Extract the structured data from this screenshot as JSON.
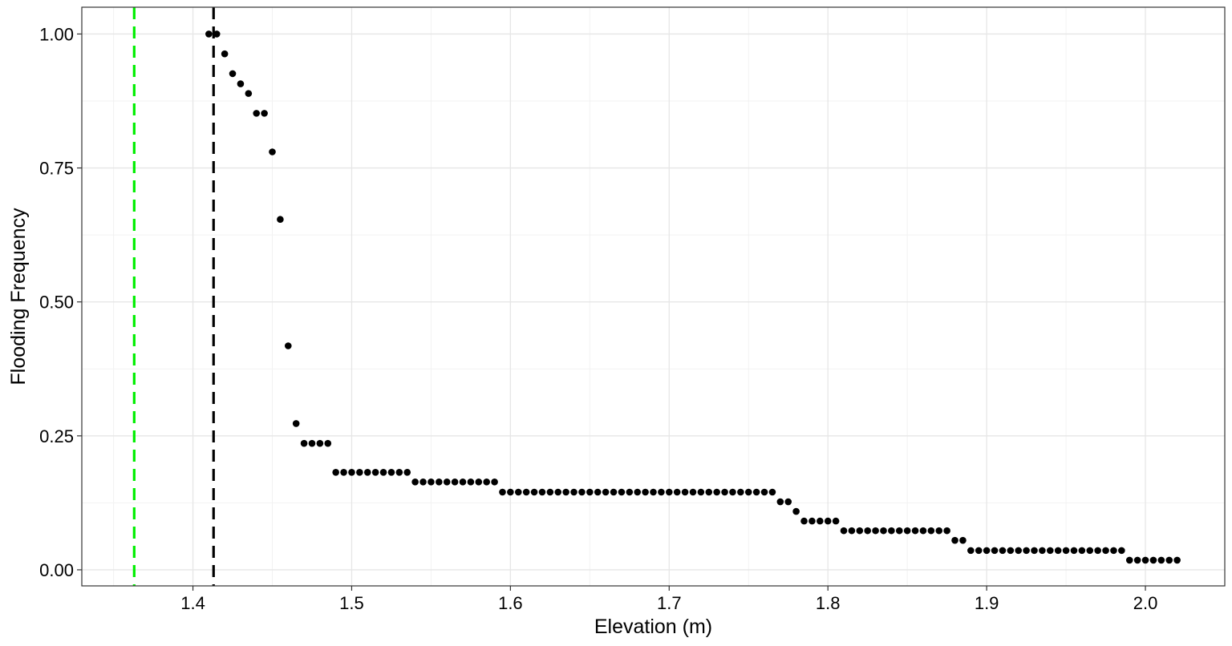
{
  "chart_data": {
    "type": "scatter",
    "title": "",
    "xlabel": "Elevation (m)",
    "ylabel": "Flooding Frequency",
    "xlim": [
      1.33,
      2.05
    ],
    "ylim": [
      -0.03,
      1.05
    ],
    "x_ticks": [
      1.4,
      1.5,
      1.6,
      1.7,
      1.8,
      1.9,
      2.0
    ],
    "x_tick_labels": [
      "1.4",
      "1.5",
      "1.6",
      "1.7",
      "1.8",
      "1.9",
      "2.0"
    ],
    "y_ticks": [
      0,
      0.25,
      0.5,
      0.75,
      1.0
    ],
    "y_tick_labels": [
      "0.00",
      "0.25",
      "0.50",
      "0.75",
      "1.00"
    ],
    "grid": true,
    "legend": "none",
    "point_color": "#000000",
    "vlines": [
      {
        "x": 1.363,
        "color": "#00ee00",
        "style": "dashed"
      },
      {
        "x": 1.413,
        "color": "#000000",
        "style": "dashed"
      }
    ],
    "segments": [
      {
        "x_start": 1.41,
        "x_end": 1.415,
        "y": 1.0
      },
      {
        "x_start": 1.42,
        "x_end": 1.42,
        "y": 0.963
      },
      {
        "x_start": 1.425,
        "x_end": 1.425,
        "y": 0.926
      },
      {
        "x_start": 1.43,
        "x_end": 1.43,
        "y": 0.907
      },
      {
        "x_start": 1.435,
        "x_end": 1.435,
        "y": 0.889
      },
      {
        "x_start": 1.44,
        "x_end": 1.445,
        "y": 0.852
      },
      {
        "x_start": 1.45,
        "x_end": 1.45,
        "y": 0.78
      },
      {
        "x_start": 1.455,
        "x_end": 1.455,
        "y": 0.654
      },
      {
        "x_start": 1.46,
        "x_end": 1.46,
        "y": 0.418
      },
      {
        "x_start": 1.465,
        "x_end": 1.465,
        "y": 0.273
      },
      {
        "x_start": 1.47,
        "x_end": 1.485,
        "y": 0.236
      },
      {
        "x_start": 1.49,
        "x_end": 1.535,
        "y": 0.182
      },
      {
        "x_start": 1.54,
        "x_end": 1.59,
        "y": 0.164
      },
      {
        "x_start": 1.595,
        "x_end": 1.765,
        "y": 0.145
      },
      {
        "x_start": 1.77,
        "x_end": 1.775,
        "y": 0.127
      },
      {
        "x_start": 1.78,
        "x_end": 1.78,
        "y": 0.109
      },
      {
        "x_start": 1.785,
        "x_end": 1.805,
        "y": 0.091
      },
      {
        "x_start": 1.81,
        "x_end": 1.875,
        "y": 0.073
      },
      {
        "x_start": 1.88,
        "x_end": 1.885,
        "y": 0.055
      },
      {
        "x_start": 1.89,
        "x_end": 1.985,
        "y": 0.036
      },
      {
        "x_start": 1.99,
        "x_end": 2.02,
        "y": 0.018
      }
    ],
    "x_step": 0.005
  }
}
